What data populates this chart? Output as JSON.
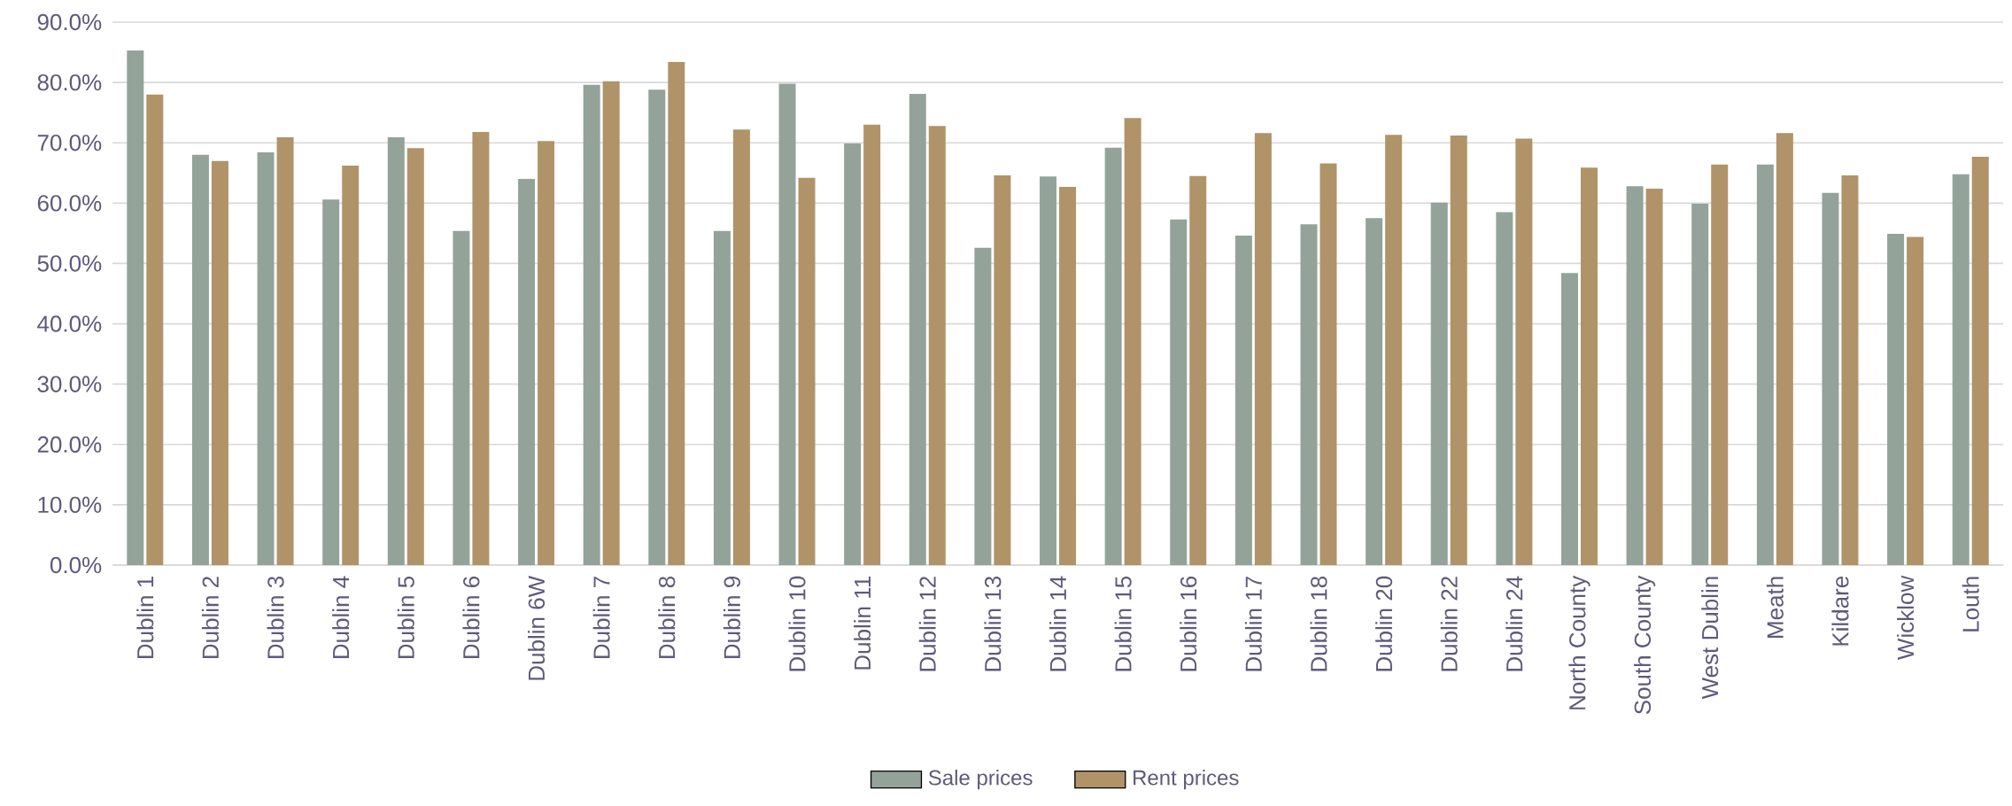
{
  "chart_data": {
    "type": "bar",
    "categories": [
      "Dublin 1",
      "Dublin 2",
      "Dublin 3",
      "Dublin 4",
      "Dublin 5",
      "Dublin 6",
      "Dublin 6W",
      "Dublin 7",
      "Dublin 8",
      "Dublin 9",
      "Dublin 10",
      "Dublin 11",
      "Dublin 12",
      "Dublin 13",
      "Dublin 14",
      "Dublin 15",
      "Dublin 16",
      "Dublin 17",
      "Dublin 18",
      "Dublin 20",
      "Dublin 22",
      "Dublin 24",
      "North County",
      "South County",
      "West Dublin",
      "Meath",
      "Kildare",
      "Wicklow",
      "Louth"
    ],
    "series": [
      {
        "name": "Sale prices",
        "color": "#93a39a",
        "values": [
          85.3,
          68.0,
          68.4,
          60.6,
          70.9,
          55.4,
          64.0,
          79.6,
          78.8,
          55.4,
          79.8,
          69.9,
          78.1,
          52.6,
          64.4,
          69.2,
          57.3,
          54.6,
          56.5,
          57.5,
          60.1,
          58.5,
          48.4,
          62.8,
          59.9,
          66.4,
          61.7,
          54.9,
          64.8
        ]
      },
      {
        "name": "Rent prices",
        "color": "#b09368",
        "values": [
          78.0,
          67.0,
          70.9,
          66.2,
          69.1,
          71.8,
          70.3,
          80.2,
          83.4,
          72.2,
          64.2,
          73.0,
          72.8,
          64.6,
          62.7,
          74.1,
          64.5,
          71.6,
          66.6,
          71.3,
          71.2,
          70.7,
          65.9,
          62.4,
          66.4,
          71.6,
          64.6,
          54.4,
          67.7
        ]
      }
    ],
    "ylim": [
      0,
      90
    ],
    "yticks": [
      {
        "value": 0,
        "label": "0.0%"
      },
      {
        "value": 10,
        "label": "10.0%"
      },
      {
        "value": 20,
        "label": "20.0%"
      },
      {
        "value": 30,
        "label": "30.0%"
      },
      {
        "value": 40,
        "label": "40.0%"
      },
      {
        "value": 50,
        "label": "50.0%"
      },
      {
        "value": 60,
        "label": "60.0%"
      },
      {
        "value": 70,
        "label": "70.0%"
      },
      {
        "value": 80,
        "label": "80.0%"
      },
      {
        "value": 90,
        "label": "90.0%"
      }
    ],
    "grid": "y",
    "legend": "bottom"
  }
}
